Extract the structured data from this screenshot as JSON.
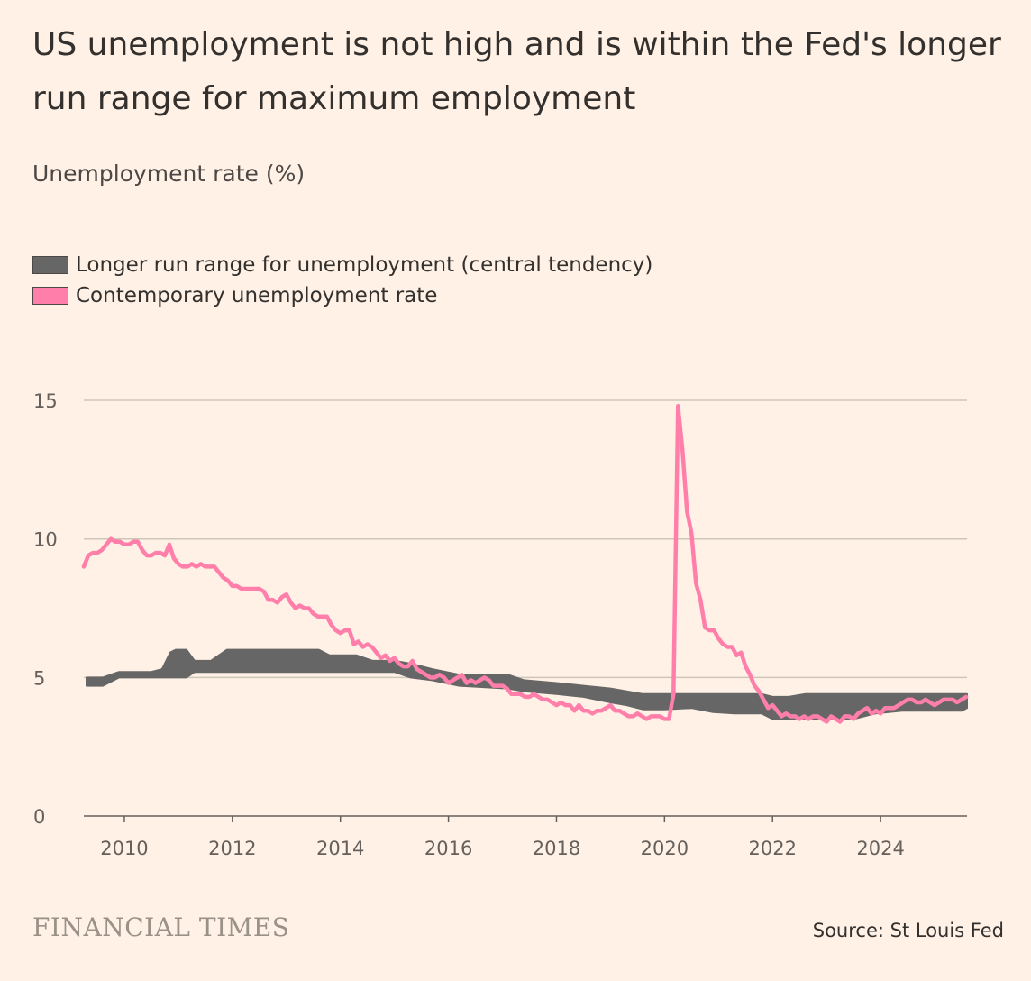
{
  "title": "US unemployment is not high and is within the Fed's longer run range for maximum employment",
  "subtitle": "Unemployment rate (%)",
  "legend": [
    {
      "label": "Longer run range for unemployment (central tendency)",
      "color": "#666666"
    },
    {
      "label": "Contemporary unemployment rate",
      "color": "#FF7FAA"
    }
  ],
  "footer": {
    "brand": "FINANCIAL TIMES",
    "source": "Source: St Louis Fed"
  },
  "chart_data": {
    "type": "line",
    "title": "US unemployment is not high and is within the Fed's longer run range for maximum employment",
    "ylabel": "Unemployment rate (%)",
    "xlabel": "",
    "xlim": [
      2009.25,
      2025.6
    ],
    "ylim": [
      0,
      17
    ],
    "yticks": [
      0,
      5,
      10,
      15
    ],
    "xticks": [
      2010,
      2012,
      2014,
      2016,
      2018,
      2020,
      2022,
      2024
    ],
    "grid": "horizontal",
    "legend_position": "top-left",
    "series": [
      {
        "name": "Longer run range for unemployment (central tendency)",
        "kind": "band",
        "color": "#666666",
        "points": [
          [
            2009.3,
            4.7,
            5.0
          ],
          [
            2009.6,
            4.7,
            5.0
          ],
          [
            2009.9,
            5.0,
            5.2
          ],
          [
            2010.5,
            5.0,
            5.2
          ],
          [
            2010.7,
            5.0,
            5.3
          ],
          [
            2010.85,
            5.0,
            5.9
          ],
          [
            2010.95,
            5.0,
            6.0
          ],
          [
            2011.15,
            5.0,
            6.0
          ],
          [
            2011.3,
            5.2,
            5.6
          ],
          [
            2011.6,
            5.2,
            5.6
          ],
          [
            2011.9,
            5.2,
            6.0
          ],
          [
            2013.6,
            5.2,
            6.0
          ],
          [
            2013.8,
            5.2,
            5.8
          ],
          [
            2014.3,
            5.2,
            5.8
          ],
          [
            2014.6,
            5.2,
            5.6
          ],
          [
            2015.0,
            5.2,
            5.6
          ],
          [
            2015.3,
            5.0,
            5.5
          ],
          [
            2015.7,
            4.9,
            5.3
          ],
          [
            2016.2,
            4.7,
            5.1
          ],
          [
            2017.1,
            4.6,
            5.1
          ],
          [
            2017.4,
            4.5,
            4.9
          ],
          [
            2018.0,
            4.4,
            4.8
          ],
          [
            2018.5,
            4.3,
            4.7
          ],
          [
            2019.0,
            4.1,
            4.6
          ],
          [
            2019.3,
            4.0,
            4.5
          ],
          [
            2019.6,
            3.85,
            4.4
          ],
          [
            2020.0,
            3.85,
            4.4
          ],
          [
            2020.5,
            3.9,
            4.4
          ],
          [
            2020.9,
            3.75,
            4.4
          ],
          [
            2021.3,
            3.7,
            4.4
          ],
          [
            2021.8,
            3.7,
            4.4
          ],
          [
            2022.0,
            3.5,
            4.3
          ],
          [
            2022.3,
            3.5,
            4.3
          ],
          [
            2022.6,
            3.5,
            4.4
          ],
          [
            2023.5,
            3.5,
            4.4
          ],
          [
            2023.9,
            3.7,
            4.4
          ],
          [
            2024.4,
            3.8,
            4.4
          ],
          [
            2025.5,
            3.8,
            4.4
          ],
          [
            2025.6,
            3.9,
            4.4
          ]
        ]
      },
      {
        "name": "Contemporary unemployment rate",
        "kind": "line",
        "color": "#FF7FAA",
        "start": 2009.25,
        "frequency": "monthly",
        "values": [
          9.0,
          9.4,
          9.5,
          9.5,
          9.6,
          9.8,
          10.0,
          9.9,
          9.9,
          9.8,
          9.8,
          9.9,
          9.9,
          9.6,
          9.4,
          9.4,
          9.5,
          9.5,
          9.4,
          9.8,
          9.3,
          9.1,
          9.0,
          9.0,
          9.1,
          9.0,
          9.1,
          9.0,
          9.0,
          9.0,
          8.8,
          8.6,
          8.5,
          8.3,
          8.3,
          8.2,
          8.2,
          8.2,
          8.2,
          8.2,
          8.1,
          7.8,
          7.8,
          7.7,
          7.9,
          8.0,
          7.7,
          7.5,
          7.6,
          7.5,
          7.5,
          7.3,
          7.2,
          7.2,
          7.2,
          6.9,
          6.7,
          6.6,
          6.7,
          6.7,
          6.2,
          6.3,
          6.1,
          6.2,
          6.1,
          5.9,
          5.7,
          5.8,
          5.6,
          5.7,
          5.5,
          5.4,
          5.4,
          5.6,
          5.3,
          5.2,
          5.1,
          5.0,
          5.0,
          5.1,
          5.0,
          4.8,
          4.9,
          5.0,
          5.1,
          4.8,
          4.9,
          4.8,
          4.9,
          5.0,
          4.9,
          4.7,
          4.7,
          4.7,
          4.6,
          4.4,
          4.4,
          4.4,
          4.3,
          4.3,
          4.4,
          4.3,
          4.2,
          4.2,
          4.1,
          4.0,
          4.1,
          4.0,
          4.0,
          3.8,
          4.0,
          3.8,
          3.8,
          3.7,
          3.8,
          3.8,
          3.9,
          4.0,
          3.8,
          3.8,
          3.7,
          3.6,
          3.6,
          3.7,
          3.6,
          3.5,
          3.6,
          3.6,
          3.6,
          3.5,
          3.5,
          4.4,
          14.8,
          13.2,
          11.0,
          10.2,
          8.4,
          7.8,
          6.8,
          6.7,
          6.7,
          6.4,
          6.2,
          6.1,
          6.1,
          5.8,
          5.9,
          5.4,
          5.1,
          4.7,
          4.5,
          4.2,
          3.9,
          4.0,
          3.8,
          3.6,
          3.7,
          3.6,
          3.6,
          3.5,
          3.6,
          3.5,
          3.6,
          3.6,
          3.5,
          3.4,
          3.6,
          3.5,
          3.4,
          3.6,
          3.6,
          3.5,
          3.7,
          3.8,
          3.9,
          3.7,
          3.8,
          3.7,
          3.9,
          3.9,
          3.9,
          4.0,
          4.1,
          4.2,
          4.2,
          4.1,
          4.1,
          4.2,
          4.1,
          4.0,
          4.1,
          4.2,
          4.2,
          4.2,
          4.1,
          4.2,
          4.3
        ]
      }
    ]
  }
}
